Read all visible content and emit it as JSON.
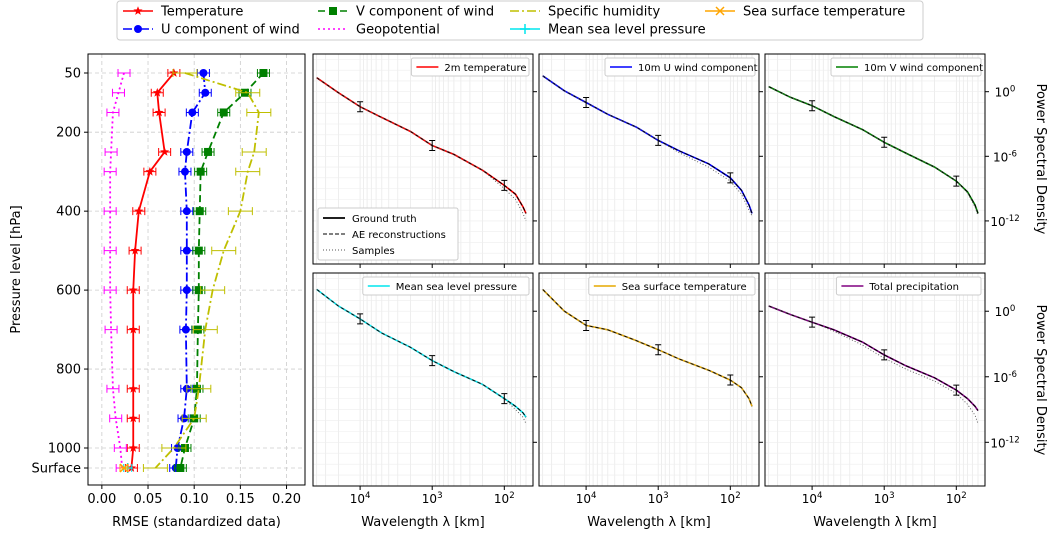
{
  "chart_data": [
    {
      "type": "line",
      "xlabel": "RMSE (standardized data)",
      "ylabel": "Pressure level [hPa]",
      "xlim": [
        -0.015,
        0.22
      ],
      "xticks": [
        "0.00",
        "0.05",
        "0.10",
        "0.15",
        "0.20"
      ],
      "ytick_labels": [
        "50",
        "200",
        "400",
        "600",
        "800",
        "1000",
        "Surface"
      ],
      "levels": [
        50,
        100,
        150,
        250,
        300,
        400,
        500,
        600,
        700,
        850,
        925,
        1000
      ],
      "level_ticks": [
        50,
        200,
        400,
        600,
        800,
        1000
      ],
      "grid": true,
      "legend_position": "top",
      "series": [
        {
          "name": "Temperature",
          "color": "#ff0000",
          "dash": "",
          "marker": "star",
          "values": [
            0.078,
            0.06,
            0.062,
            0.068,
            0.052,
            0.04,
            0.036,
            0.034,
            0.034,
            0.034,
            0.034,
            0.034,
            0.032
          ],
          "surface": 0.032
        },
        {
          "name": "U component of wind",
          "color": "#0000ff",
          "dash": "9,3,2,3",
          "marker": "circle",
          "values": [
            0.11,
            0.112,
            0.098,
            0.092,
            0.09,
            0.092,
            0.092,
            0.092,
            0.091,
            0.092,
            0.089,
            0.082,
            0.08
          ],
          "surface": 0.08
        },
        {
          "name": "V component of wind",
          "color": "#008000",
          "dash": "7,4",
          "marker": "square",
          "values": [
            0.175,
            0.155,
            0.132,
            0.115,
            0.107,
            0.106,
            0.105,
            0.105,
            0.104,
            0.103,
            0.1,
            0.09,
            0.085
          ],
          "surface": 0.087
        },
        {
          "name": "Geopotential",
          "color": "#ff00ff",
          "dash": "2,3",
          "marker": "none",
          "values": [
            0.024,
            0.018,
            0.012,
            0.01,
            0.009,
            0.009,
            0.009,
            0.009,
            0.01,
            0.012,
            0.015,
            0.02,
            0.022
          ],
          "surface": 0.02
        },
        {
          "name": "Specific humidity",
          "color": "#bfbf00",
          "dash": "9,3,2,3",
          "marker": "none",
          "values": [
            0.09,
            0.158,
            0.17,
            0.165,
            0.158,
            0.15,
            0.132,
            0.12,
            0.112,
            0.105,
            0.1,
            0.078,
            0.058
          ],
          "surface": 0.026
        },
        {
          "name": "Mean sea level pressure",
          "color": "#00e5ee",
          "dash": "",
          "marker": "plus",
          "values": [],
          "surface": 0.028
        },
        {
          "name": "Sea surface temperature",
          "color": "#ffa500",
          "dash": "",
          "marker": "x",
          "values": [],
          "surface": 0.024
        }
      ]
    },
    {
      "type": "line",
      "xlabel": "Wavelength λ [km]",
      "ylabel": "Power Spectral Density",
      "x_scale": "log",
      "y_scale": "log",
      "xticks": [
        "10^4",
        "10^3",
        "10^2"
      ],
      "yticks": [
        "10^0",
        "10^-6",
        "10^-12"
      ],
      "panels": [
        {
          "name": "2m temperature",
          "color": "#ff0000",
          "x": [
            40000,
            20000,
            10000,
            5000,
            2000,
            1000,
            500,
            200,
            100,
            70,
            55,
            50
          ],
          "y_truth": [
            20,
            0.8,
            0.04,
            0.004,
            0.0002,
            1e-05,
            1.5e-06,
            5e-08,
            2e-09,
            3e-10,
            2e-11,
            5e-12
          ],
          "y_samples": [
            20,
            0.8,
            0.04,
            0.004,
            0.0002,
            1e-05,
            1.5e-06,
            5e-08,
            1e-09,
            1e-10,
            5e-12,
            1e-12
          ]
        },
        {
          "name": "10m U wind component",
          "color": "#0000ff",
          "x": [
            40000,
            20000,
            10000,
            5000,
            2000,
            1000,
            500,
            200,
            100,
            70,
            55,
            50
          ],
          "y_truth": [
            30,
            1.2,
            0.1,
            0.008,
            0.0005,
            3e-05,
            3e-06,
            2e-07,
            1e-08,
            7e-10,
            3e-11,
            5e-12
          ],
          "y_samples": [
            30,
            1.2,
            0.1,
            0.008,
            0.0005,
            3e-05,
            2e-06,
            1e-07,
            5e-09,
            3e-10,
            1e-11,
            3e-12
          ]
        },
        {
          "name": "10m V wind component",
          "color": "#008000",
          "x": [
            40000,
            20000,
            10000,
            5000,
            2000,
            1000,
            500,
            200,
            100,
            70,
            55,
            50
          ],
          "y_truth": [
            3,
            0.3,
            0.05,
            0.005,
            0.0003,
            2e-05,
            2e-06,
            1e-07,
            5e-09,
            5e-10,
            3e-11,
            5e-12
          ],
          "y_samples": [
            3,
            0.3,
            0.05,
            0.005,
            0.0003,
            2e-05,
            2e-06,
            1e-07,
            5e-09,
            4e-10,
            2e-11,
            3e-12
          ]
        },
        {
          "name": "Mean sea level pressure",
          "color": "#00e5ee",
          "x": [
            40000,
            20000,
            10000,
            5000,
            2000,
            1000,
            500,
            200,
            100,
            70,
            55,
            50
          ],
          "y_truth": [
            100,
            3,
            0.2,
            0.01,
            0.0005,
            3e-05,
            3e-06,
            2e-07,
            1e-08,
            2e-09,
            5e-10,
            2e-10
          ],
          "y_samples": [
            100,
            3,
            0.2,
            0.01,
            0.0005,
            3e-05,
            3e-06,
            2e-07,
            1e-08,
            1e-09,
            2e-10,
            5e-11
          ]
        },
        {
          "name": "Sea surface temperature",
          "color": "#e6a800",
          "x": [
            40000,
            20000,
            10000,
            5000,
            2000,
            1000,
            500,
            200,
            100,
            70,
            55,
            50
          ],
          "y_truth": [
            100,
            1,
            0.05,
            0.02,
            0.002,
            0.0003,
            4e-05,
            4e-06,
            5e-07,
            1e-07,
            1e-08,
            2e-09
          ],
          "y_samples": [
            100,
            1,
            0.05,
            0.02,
            0.002,
            0.0003,
            4e-05,
            4e-06,
            5e-07,
            1e-07,
            1e-08,
            2e-09
          ]
        },
        {
          "name": "Total precipitation",
          "color": "#800080",
          "x": [
            40000,
            20000,
            10000,
            5000,
            2000,
            1000,
            500,
            200,
            100,
            70,
            55,
            50
          ],
          "y_truth": [
            3,
            0.5,
            0.1,
            0.02,
            0.0015,
            0.0001,
            1e-05,
            8e-07,
            6e-08,
            1e-08,
            2e-09,
            8e-10
          ],
          "y_samples": [
            3,
            0.5,
            0.1,
            0.015,
            0.0008,
            5e-05,
            5e-06,
            4e-07,
            3e-08,
            3e-09,
            3e-10,
            5e-11
          ]
        }
      ],
      "inner_legend": [
        "Ground truth",
        "AE reconstructions",
        "Samples"
      ]
    }
  ]
}
